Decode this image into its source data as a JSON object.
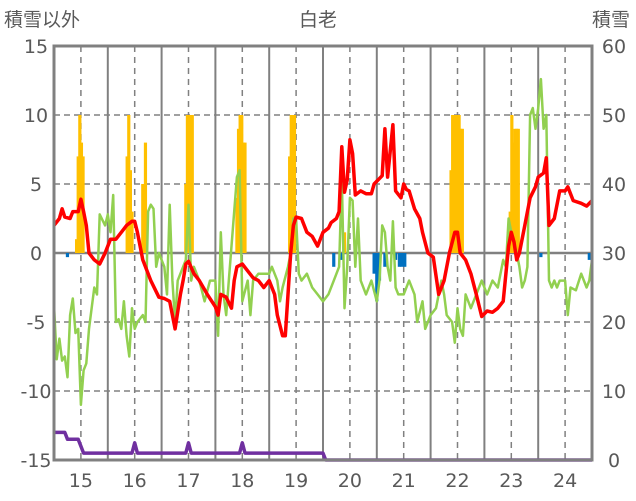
{
  "chart_data": {
    "type": "line",
    "title": "白老",
    "ylabel_left": "積雪以外",
    "ylabel_right": "積雪",
    "ylim_left": [
      -15,
      15
    ],
    "yticks_left": [
      "15",
      "10",
      "5",
      "0",
      "-5",
      "-10",
      "-15"
    ],
    "ylim_right": [
      0,
      60
    ],
    "yticks_right": [
      "60",
      "50",
      "40",
      "30",
      "20",
      "10",
      "0"
    ],
    "xlim": [
      14.5,
      24.5
    ],
    "xticks": [
      "15",
      "16",
      "17",
      "18",
      "19",
      "20",
      "21",
      "22",
      "23",
      "24"
    ],
    "colors": {
      "red": "#ff0000",
      "green": "#92d050",
      "orange": "#ffc000",
      "blue": "#0070c0",
      "purple": "#7030a0",
      "frame": "#808080"
    },
    "series": [
      {
        "name": "red",
        "axis": "left",
        "color": "#ff0000",
        "x": [
          14.5,
          14.6,
          14.65,
          14.7,
          14.8,
          14.85,
          14.95,
          15.0,
          15.05,
          15.1,
          15.15,
          15.25,
          15.35,
          15.45,
          15.55,
          15.65,
          15.75,
          15.85,
          15.95,
          16.0,
          16.05,
          16.15,
          16.3,
          16.45,
          16.55,
          16.65,
          16.75,
          16.85,
          16.9,
          16.95,
          17.0,
          17.1,
          17.2,
          17.35,
          17.5,
          17.55,
          17.6,
          17.7,
          17.8,
          17.85,
          17.9,
          18.0,
          18.1,
          18.2,
          18.3,
          18.4,
          18.5,
          18.6,
          18.65,
          18.75,
          18.8,
          18.85,
          18.9,
          18.95,
          19.0,
          19.1,
          19.2,
          19.3,
          19.4,
          19.5,
          19.6,
          19.65,
          19.75,
          19.8,
          19.85,
          19.9,
          19.95,
          20.0,
          20.05,
          20.1,
          20.2,
          20.3,
          20.4,
          20.45,
          20.6,
          20.65,
          20.7,
          20.8,
          20.85,
          20.95,
          21.0,
          21.05,
          21.1,
          21.2,
          21.3,
          21.35,
          21.45,
          21.55,
          21.65,
          21.75,
          21.85,
          21.95,
          22.0,
          22.05,
          22.15,
          22.25,
          22.35,
          22.45,
          22.55,
          22.65,
          22.75,
          22.85,
          22.9,
          22.95,
          23.0,
          23.05,
          23.1,
          23.15,
          23.25,
          23.35,
          23.45,
          23.5,
          23.6,
          23.65,
          23.7,
          23.8,
          23.9,
          24.0,
          24.05,
          24.15,
          24.3,
          24.4,
          24.5
        ],
        "y": [
          2,
          2.5,
          3.2,
          2.6,
          2.5,
          3.0,
          3.0,
          3.9,
          3.0,
          2,
          0,
          -0.5,
          -0.8,
          0,
          1,
          1.0,
          1.5,
          2,
          2.3,
          2.3,
          1.5,
          -0.5,
          -2,
          -3.2,
          -3.3,
          -3.5,
          -5.5,
          -3,
          -2,
          -0.8,
          -0.6,
          -1.5,
          -2,
          -3,
          -3.9,
          -4.5,
          -3,
          -3.2,
          -4,
          -2,
          -1,
          -0.8,
          -1.3,
          -1.8,
          -2,
          -2.5,
          -2,
          -3,
          -4.5,
          -6,
          -6,
          -3,
          0,
          2,
          2.6,
          2.5,
          1.5,
          1.2,
          0.5,
          1.5,
          1.8,
          2.2,
          2.5,
          3.0,
          7.7,
          4.4,
          5.3,
          8.2,
          7.2,
          4.2,
          4.5,
          4.3,
          4.3,
          5,
          5.6,
          9.0,
          5.5,
          9.3,
          4.5,
          4.0,
          5,
          4.6,
          4.5,
          3.2,
          2.5,
          1.5,
          0,
          -0.3,
          -3,
          -2,
          0,
          1.5,
          1.5,
          0,
          -0.5,
          -1.5,
          -3,
          -4.6,
          -4.2,
          -4.3,
          -4.0,
          -3.5,
          -1.5,
          0.5,
          1.5,
          0.8,
          -0.5,
          0,
          2,
          4,
          4.8,
          5.5,
          5.8,
          6.9,
          2,
          2.5,
          4.5,
          4.5,
          4.8,
          3.8,
          3.6,
          3.4,
          3.8
        ]
      },
      {
        "name": "green",
        "axis": "left",
        "color": "#92d050",
        "x": [
          14.5,
          14.55,
          14.6,
          14.65,
          14.7,
          14.75,
          14.8,
          14.85,
          14.9,
          14.95,
          15.0,
          15.05,
          15.1,
          15.15,
          15.25,
          15.3,
          15.35,
          15.45,
          15.5,
          15.55,
          15.6,
          15.65,
          15.7,
          15.75,
          15.8,
          15.85,
          15.9,
          15.95,
          16.0,
          16.05,
          16.15,
          16.2,
          16.25,
          16.3,
          16.35,
          16.4,
          16.45,
          16.55,
          16.6,
          16.65,
          16.7,
          16.75,
          16.8,
          16.85,
          16.95,
          17.0,
          17.05,
          17.1,
          17.2,
          17.3,
          17.4,
          17.5,
          17.55,
          17.6,
          17.65,
          17.7,
          17.75,
          17.85,
          17.9,
          17.95,
          18.0,
          18.1,
          18.15,
          18.2,
          18.3,
          18.4,
          18.5,
          18.55,
          18.65,
          18.7,
          18.75,
          18.85,
          18.9,
          18.95,
          19.0,
          19.05,
          19.1,
          19.2,
          19.3,
          19.4,
          19.5,
          19.6,
          19.7,
          19.8,
          19.85,
          19.9,
          19.95,
          20.0,
          20.05,
          20.1,
          20.15,
          20.2,
          20.3,
          20.4,
          20.5,
          20.55,
          20.6,
          20.65,
          20.7,
          20.75,
          20.8,
          20.85,
          20.9,
          21.0,
          21.1,
          21.2,
          21.25,
          21.35,
          21.4,
          21.5,
          21.6,
          21.7,
          21.75,
          21.8,
          21.9,
          21.95,
          22.0,
          22.05,
          22.1,
          22.15,
          22.25,
          22.35,
          22.45,
          22.55,
          22.65,
          22.75,
          22.85,
          22.9,
          22.95,
          23.0,
          23.1,
          23.15,
          23.2,
          23.25,
          23.3,
          23.35,
          23.4,
          23.45,
          23.5,
          23.55,
          23.6,
          23.65,
          23.7,
          23.75,
          23.8,
          23.85,
          23.9,
          24.0,
          24.05,
          24.1,
          24.2,
          24.3,
          24.4,
          24.45,
          24.5
        ],
        "y": [
          -3.8,
          -7.7,
          -6.2,
          -7.8,
          -7.5,
          -9,
          -4.5,
          -3.3,
          -5.8,
          -5.5,
          -11,
          -8.5,
          -8,
          -5.5,
          -2.5,
          -3,
          2.8,
          2,
          2.8,
          1.5,
          4.2,
          -5,
          -4.8,
          -5.5,
          -3.5,
          -6,
          -7.5,
          -4,
          -5.5,
          -5,
          -4.5,
          -5,
          3,
          3.5,
          3.2,
          -1,
          0,
          -1,
          -3,
          3.5,
          -2,
          -5,
          -2,
          -1.5,
          -0.5,
          3.5,
          -2,
          -1,
          -2,
          -3.5,
          -2,
          -2,
          -6,
          1.5,
          -3,
          -4.5,
          -2,
          3,
          5.5,
          6,
          -3.5,
          -2,
          -4.5,
          -2,
          -1.5,
          -1.5,
          -1.5,
          -1,
          -2,
          -3.5,
          -2.5,
          -1,
          0,
          2.5,
          2.5,
          -1.5,
          -2,
          -1.5,
          -2.5,
          -3,
          -3.5,
          -3,
          -2,
          -1,
          5.5,
          -4,
          -1,
          4,
          3.8,
          -1,
          2.5,
          -2,
          -3,
          -2,
          -3.5,
          -2,
          2,
          1.5,
          -1,
          -2,
          2.3,
          -2.5,
          -3,
          -3,
          -2,
          -3,
          -5,
          -3.5,
          -5.5,
          -4.5,
          -4,
          -2,
          -3,
          -4.5,
          -5,
          -6.5,
          -4,
          -5.5,
          -6,
          -3,
          -4,
          -3,
          -2,
          -3,
          -2,
          -2.5,
          -0.5,
          -1,
          2.5,
          1.5,
          0,
          -1,
          -2.5,
          -2,
          -1,
          10,
          10.5,
          9,
          10.5,
          12.6,
          9,
          10,
          -2,
          -2.5,
          -2,
          -2.5,
          -2,
          -2,
          -4.5,
          -2.5,
          -2.7,
          -1.5,
          -2.5,
          -2,
          -0.5
        ]
      },
      {
        "name": "purple",
        "axis": "right",
        "color": "#7030a0",
        "x": [
          14.5,
          14.7,
          14.75,
          14.95,
          15.05,
          15.95,
          16.0,
          16.05,
          16.95,
          17.0,
          17.05,
          17.95,
          18.0,
          18.05,
          19.5,
          19.55,
          24.5
        ],
        "y": [
          4,
          4,
          3,
          3,
          1,
          1,
          2.5,
          1,
          1,
          2.5,
          1,
          1,
          2.5,
          1,
          1,
          0,
          0
        ]
      }
    ],
    "bars": [
      {
        "name": "orange",
        "axis": "left",
        "color": "#ffc000",
        "x": [
          14.92,
          14.95,
          14.98,
          15.01,
          15.04,
          15.86,
          15.89,
          15.92,
          15.95,
          16.15,
          16.2,
          16.95,
          16.98,
          17.01,
          17.04,
          17.07,
          17.9,
          17.93,
          17.96,
          17.99,
          18.02,
          18.05,
          18.88,
          18.91,
          18.94,
          18.97,
          19.9,
          21.88,
          21.91,
          21.94,
          21.97,
          22.0,
          22.03,
          22.06,
          22.09,
          22.98,
          23.01,
          23.04,
          23.07,
          23.1,
          23.13
        ],
        "y": [
          1,
          7,
          10,
          8,
          7,
          7,
          10,
          6,
          3,
          5,
          8,
          5,
          10,
          10,
          10,
          10,
          4,
          9,
          10,
          10,
          8,
          8,
          7,
          10,
          10,
          10,
          1.5,
          6,
          10,
          10,
          10,
          10,
          10,
          9,
          9,
          3,
          10,
          8,
          9,
          9,
          9
        ]
      },
      {
        "name": "blue",
        "axis": "left",
        "color": "#0070c0",
        "x": [
          14.75,
          19.7,
          19.85,
          20.45,
          20.5,
          20.55,
          20.65,
          20.85,
          20.92,
          20.97,
          21.02,
          23.55,
          24.45
        ],
        "y": [
          -0.3,
          -1,
          -0.5,
          -1.5,
          -3.5,
          -2,
          -1,
          -0.5,
          -1,
          -1,
          -1,
          -0.3,
          -0.5
        ]
      }
    ]
  }
}
